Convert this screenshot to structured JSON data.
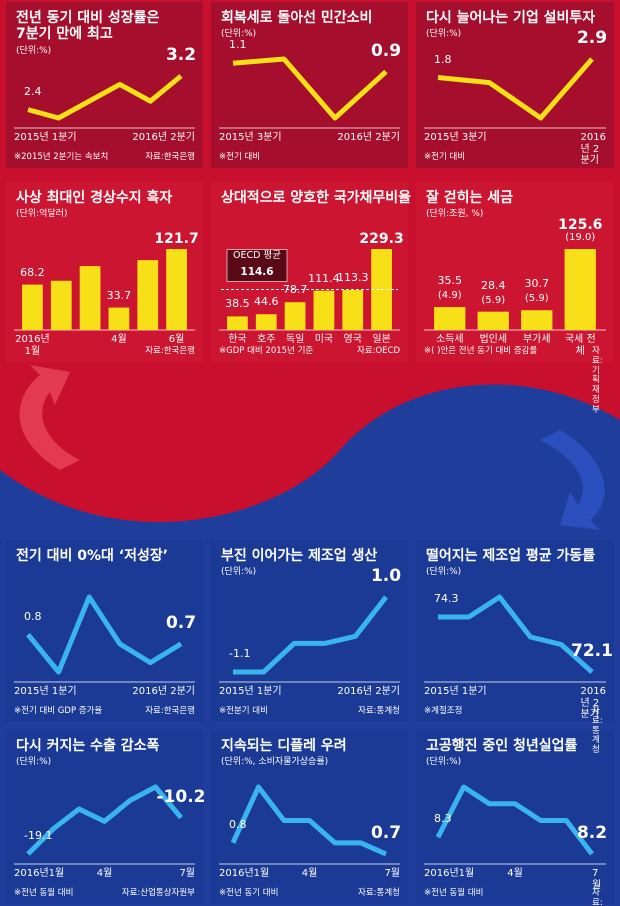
{
  "chart_data": [
    {
      "type": "line",
      "title": "전년 동기 대비 성장률은\n7분기 만에 최고",
      "unit": "(단위:%)",
      "color": "#f7e017",
      "categories": [
        "2015년 1분기",
        null,
        null,
        null,
        null,
        "2016년 2분기"
      ],
      "values": [
        2.4,
        2.2,
        2.6,
        3.0,
        2.6,
        3.2
      ],
      "value_labels": [
        "2.4",
        null,
        null,
        null,
        null,
        "3.2"
      ],
      "note": "※2015년 2분기는 속보치",
      "source": "자료:한국은행"
    },
    {
      "type": "line",
      "title": "회복세로 돌아선 민간소비",
      "unit": "(단위:%)",
      "color": "#f7e017",
      "categories": [
        "2015년 3분기",
        null,
        null,
        "2016년 2분기"
      ],
      "values": [
        1.1,
        1.2,
        -0.2,
        0.9
      ],
      "value_labels": [
        "1.1",
        null,
        null,
        "0.9"
      ],
      "note": "※전기 대비"
    },
    {
      "type": "line",
      "title": "다시 늘어나는 기업 설비투자",
      "unit": "(단위:%)",
      "color": "#f7e017",
      "categories": [
        "2015년 3분기",
        null,
        null,
        "2016년 2분기"
      ],
      "values": [
        1.8,
        1.5,
        -0.6,
        2.9
      ],
      "value_labels": [
        "1.8",
        null,
        null,
        "2.9"
      ],
      "note": "※전기 대비"
    },
    {
      "type": "bar",
      "title": "사상 최대인 경상수지 흑자",
      "unit": "(단위:억달러)",
      "color": "#f7e017",
      "categories": [
        "2016년\n1월",
        null,
        null,
        "4월",
        null,
        "6월"
      ],
      "values": [
        68.2,
        74,
        96,
        33.7,
        105,
        121.7
      ],
      "value_labels": [
        "68.2",
        null,
        null,
        "33.7",
        null,
        "121.7"
      ],
      "source": "자료:한국은행"
    },
    {
      "type": "bar",
      "title": "상대적으로 양호한 국가채무비율",
      "color": "#f7e017",
      "categories": [
        "한국",
        "호주",
        "독일",
        "미국",
        "영국",
        "일본"
      ],
      "values": [
        38.5,
        44.6,
        78.7,
        111.4,
        113.3,
        229.3
      ],
      "reference": {
        "label": "OECD 평균",
        "value": 114.6
      },
      "note": "※GDP 대비 2015년 기준",
      "source": "자료:OECD"
    },
    {
      "type": "bar",
      "title": "잘 걷히는 세금",
      "unit": "(단위:조원, %)",
      "color": "#f7e017",
      "categories": [
        "소득세",
        "법인세",
        "부가세",
        "국세 전체"
      ],
      "values": [
        35.5,
        28.4,
        30.7,
        125.6
      ],
      "changes": [
        4.9,
        5.9,
        5.9,
        19.0
      ],
      "change_labels": [
        "(4.9)",
        "(5.9)",
        "(5.9)",
        "(19.0)"
      ],
      "note": "※( )안은 전년 동기 대비 증감률",
      "source": "자료:기획재정부"
    },
    {
      "type": "line",
      "title": "전기 대비 0%대 ‘저성장’",
      "color": "#3ab4ee",
      "categories": [
        "2015년 1분기",
        null,
        null,
        null,
        null,
        "2016년 2분기"
      ],
      "values": [
        0.8,
        0.4,
        1.2,
        0.7,
        0.5,
        0.7
      ],
      "value_labels": [
        "0.8",
        null,
        null,
        null,
        null,
        "0.7"
      ],
      "note": "※전기 대비 GDP 증가율",
      "source": "자료:한국은행"
    },
    {
      "type": "line",
      "title": "부진 이어가는 제조업 생산",
      "unit": "(단위:%)",
      "color": "#3ab4ee",
      "categories": [
        "2015년 1분기",
        null,
        null,
        null,
        null,
        "2016년 2분기"
      ],
      "values": [
        -1.1,
        -1.1,
        -0.3,
        -0.3,
        -0.1,
        1.0
      ],
      "value_labels": [
        "-1.1",
        null,
        null,
        null,
        null,
        "1.0"
      ],
      "note": "※전분기 대비",
      "source": "자료:통계청"
    },
    {
      "type": "line",
      "title": "떨어지는 제조업 평균 가동률",
      "unit": "(단위:%)",
      "color": "#3ab4ee",
      "categories": [
        "2015년 1분기",
        null,
        null,
        null,
        null,
        "2016년 2분기"
      ],
      "values": [
        74.3,
        74.3,
        75.1,
        73.5,
        73.2,
        72.1
      ],
      "value_labels": [
        "74.3",
        null,
        null,
        null,
        null,
        "72.1"
      ],
      "note": "※계절조정",
      "source": "자료:통계청"
    },
    {
      "type": "line",
      "title": "다시 커지는 수출 감소폭",
      "unit": "(단위:%)",
      "color": "#3ab4ee",
      "categories": [
        "2016년1월",
        null,
        null,
        "4월",
        null,
        null,
        "7월"
      ],
      "values": [
        -19.1,
        -12.9,
        -8.1,
        -11.1,
        -6.0,
        -2.7,
        -10.2
      ],
      "value_labels": [
        "-19.1",
        null,
        null,
        null,
        null,
        null,
        "-10.2"
      ],
      "note": "※전년 동월 대비",
      "source": "자료:산업통상자원부"
    },
    {
      "type": "line",
      "title": "지속되는 디플레 우려",
      "unit": "(단위:%, 소비자물가상승률)",
      "color": "#3ab4ee",
      "categories": [
        "2016년1월",
        null,
        null,
        "4월",
        null,
        null,
        "7월"
      ],
      "values": [
        0.8,
        1.3,
        1.0,
        1.0,
        0.8,
        0.8,
        0.7
      ],
      "value_labels": [
        "0.8",
        null,
        null,
        null,
        null,
        null,
        "0.7"
      ],
      "note": "※전년 동기 대비",
      "source": "자료:통계청"
    },
    {
      "type": "line",
      "title": "고공행진 중인 청년실업률",
      "unit": "(단위:%)",
      "color": "#3ab4ee",
      "categories": [
        "2016년1월",
        null,
        null,
        "4월",
        null,
        null,
        "7월"
      ],
      "values": [
        8.3,
        8.6,
        8.5,
        8.5,
        8.4,
        8.4,
        8.2
      ],
      "value_labels": [
        "8.3",
        null,
        null,
        null,
        null,
        null,
        "8.2"
      ],
      "note": "※전년 동월 대비",
      "source": "자료:통계청"
    }
  ]
}
